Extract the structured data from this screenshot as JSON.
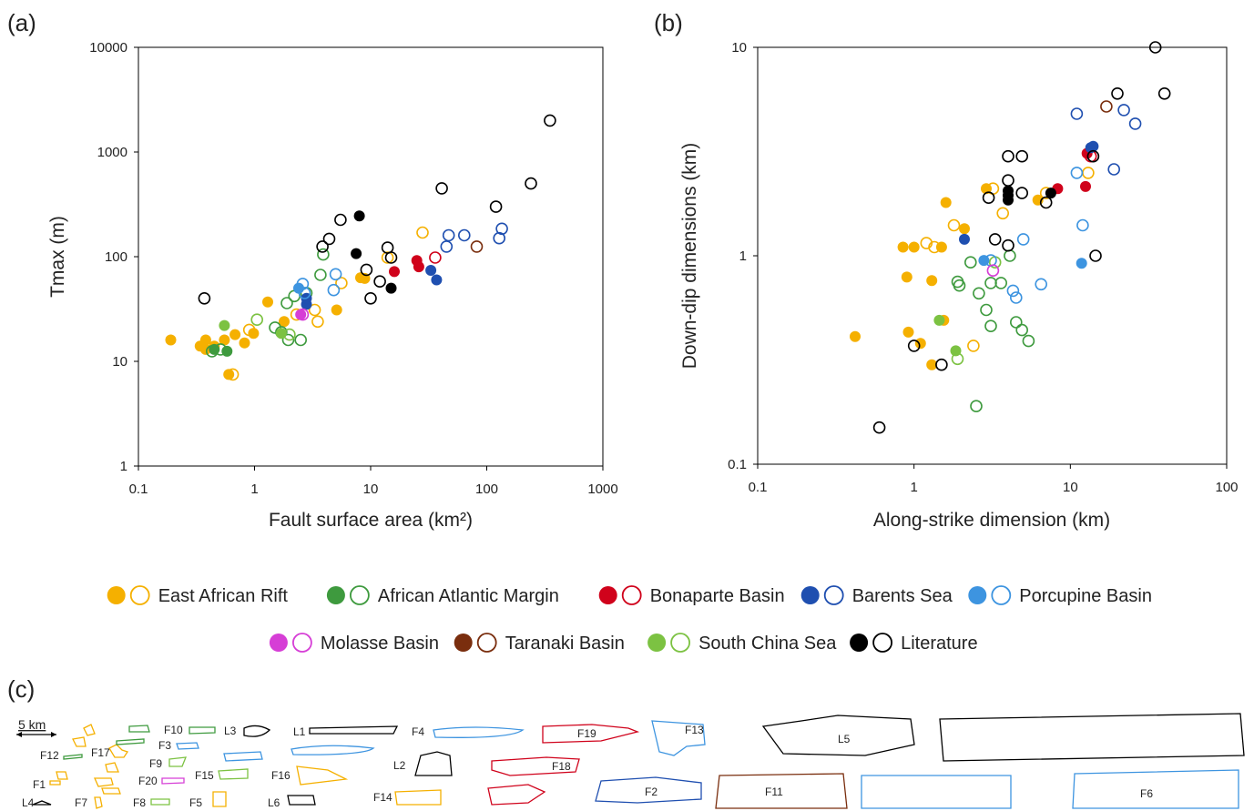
{
  "panels": {
    "a": "(a)",
    "b": "(b)",
    "c": "(c)"
  },
  "scale_bar_label": "5 km",
  "legend": [
    {
      "key": "EAR",
      "label": "East African Rift",
      "color": "#F5B000"
    },
    {
      "key": "AAM",
      "label": "African Atlantic Margin",
      "color": "#3E9A3E"
    },
    {
      "key": "BON",
      "label": "Bonaparte Basin",
      "color": "#D0021B"
    },
    {
      "key": "BAR",
      "label": "Barents Sea",
      "color": "#1F4FB0"
    },
    {
      "key": "POR",
      "label": "Porcupine Basin",
      "color": "#3D94E0"
    },
    {
      "key": "MOL",
      "label": "Molasse Basin",
      "color": "#D63ED6"
    },
    {
      "key": "TAR",
      "label": "Taranaki Basin",
      "color": "#7A2E0E"
    },
    {
      "key": "SCS",
      "label": "South China Sea",
      "color": "#7CC242"
    },
    {
      "key": "LIT",
      "label": "Literature",
      "color": "#000000"
    }
  ],
  "chart_data": [
    {
      "id": "a",
      "type": "scatter",
      "xlabel": "Fault surface area (km²)",
      "ylabel": "Tmax (m)",
      "xscale": "log",
      "yscale": "log",
      "xlim": [
        0.1,
        1000
      ],
      "ylim": [
        1,
        10000
      ],
      "xticks": [
        "0.1",
        "1",
        "10",
        "100",
        "1000"
      ],
      "yticks": [
        "1",
        "10",
        "100",
        "1000",
        "10000"
      ],
      "grid": false,
      "points": [
        [
          "EAR",
          1,
          0.19,
          16
        ],
        [
          "EAR",
          1,
          0.34,
          14
        ],
        [
          "EAR",
          1,
          0.38,
          16
        ],
        [
          "EAR",
          1,
          0.38,
          13
        ],
        [
          "EAR",
          1,
          0.45,
          14
        ],
        [
          "EAR",
          1,
          0.6,
          7.5
        ],
        [
          "EAR",
          1,
          0.55,
          16
        ],
        [
          "EAR",
          1,
          0.68,
          18
        ],
        [
          "EAR",
          1,
          0.82,
          15
        ],
        [
          "EAR",
          1,
          0.98,
          18.5
        ],
        [
          "EAR",
          1,
          1.3,
          37
        ],
        [
          "EAR",
          1,
          1.8,
          24
        ],
        [
          "EAR",
          1,
          5.1,
          31
        ],
        [
          "EAR",
          1,
          8.9,
          62
        ],
        [
          "EAR",
          1,
          8.2,
          63
        ],
        [
          "EAR",
          0,
          0.65,
          7.5
        ],
        [
          "EAR",
          0,
          0.9,
          20
        ],
        [
          "EAR",
          0,
          2.3,
          28
        ],
        [
          "EAR",
          0,
          3.3,
          31
        ],
        [
          "EAR",
          0,
          3.5,
          24
        ],
        [
          "EAR",
          0,
          5.6,
          56
        ],
        [
          "EAR",
          0,
          28,
          170
        ],
        [
          "EAR",
          0,
          14,
          98
        ],
        [
          "AAM",
          1,
          0.45,
          13
        ],
        [
          "AAM",
          1,
          0.58,
          12.5
        ],
        [
          "AAM",
          0,
          0.43,
          12.5
        ],
        [
          "AAM",
          0,
          0.51,
          13
        ],
        [
          "AAM",
          0,
          1.5,
          21
        ],
        [
          "AAM",
          0,
          1.7,
          19
        ],
        [
          "AAM",
          0,
          1.95,
          16
        ],
        [
          "AAM",
          0,
          2.5,
          16
        ],
        [
          "AAM",
          0,
          2.2,
          42
        ],
        [
          "AAM",
          0,
          3.9,
          105
        ],
        [
          "AAM",
          0,
          3.7,
          67
        ],
        [
          "AAM",
          0,
          1.9,
          36
        ],
        [
          "AAM",
          0,
          2.8,
          45
        ],
        [
          "SCS",
          1,
          0.55,
          22
        ],
        [
          "SCS",
          1,
          1.7,
          18.5
        ],
        [
          "SCS",
          0,
          1.05,
          25
        ],
        [
          "SCS",
          0,
          2.0,
          18
        ],
        [
          "BON",
          1,
          25,
          92
        ],
        [
          "BON",
          1,
          26,
          80
        ],
        [
          "BON",
          1,
          16,
          72
        ],
        [
          "BON",
          0,
          36,
          98
        ],
        [
          "BAR",
          1,
          33,
          74
        ],
        [
          "BAR",
          1,
          37,
          60
        ],
        [
          "BAR",
          1,
          2.8,
          35
        ],
        [
          "BAR",
          1,
          2.8,
          40
        ],
        [
          "BAR",
          0,
          45,
          125
        ],
        [
          "BAR",
          0,
          64,
          160
        ],
        [
          "BAR",
          0,
          47,
          160
        ],
        [
          "BAR",
          0,
          128,
          150
        ],
        [
          "BAR",
          0,
          135,
          185
        ],
        [
          "POR",
          1,
          2.4,
          50
        ],
        [
          "POR",
          0,
          2.7,
          45
        ],
        [
          "POR",
          0,
          2.6,
          55
        ],
        [
          "POR",
          0,
          4.8,
          48
        ],
        [
          "POR",
          0,
          5,
          68
        ],
        [
          "MOL",
          1,
          2.5,
          28
        ],
        [
          "MOL",
          0,
          2.6,
          28
        ],
        [
          "TAR",
          0,
          82,
          125
        ],
        [
          "LIT",
          1,
          8,
          245
        ],
        [
          "LIT",
          1,
          7.5,
          107
        ],
        [
          "LIT",
          1,
          15,
          50
        ],
        [
          "LIT",
          0,
          0.37,
          40
        ],
        [
          "LIT",
          0,
          3.85,
          125
        ],
        [
          "LIT",
          0,
          4.4,
          148
        ],
        [
          "LIT",
          0,
          5.5,
          225
        ],
        [
          "LIT",
          0,
          9.2,
          75
        ],
        [
          "LIT",
          0,
          10,
          40
        ],
        [
          "LIT",
          0,
          12,
          58
        ],
        [
          "LIT",
          0,
          14,
          122
        ],
        [
          "LIT",
          0,
          15,
          98
        ],
        [
          "LIT",
          0,
          41,
          450
        ],
        [
          "LIT",
          0,
          120,
          300
        ],
        [
          "LIT",
          0,
          240,
          500
        ],
        [
          "LIT",
          0,
          350,
          2000
        ]
      ]
    },
    {
      "id": "b",
      "type": "scatter",
      "xlabel": "Along-strike dimension (km)",
      "ylabel": "Down-dip dimensions (km)",
      "xscale": "log",
      "yscale": "log",
      "xlim": [
        0.1,
        100
      ],
      "ylim": [
        0.1,
        10
      ],
      "xticks": [
        "0.1",
        "1",
        "10",
        "100"
      ],
      "yticks": [
        "0.1",
        "1",
        "10"
      ],
      "grid": false,
      "points": [
        [
          "EAR",
          1,
          0.42,
          0.41
        ],
        [
          "EAR",
          1,
          0.85,
          1.1
        ],
        [
          "EAR",
          1,
          1.0,
          1.1
        ],
        [
          "EAR",
          1,
          0.9,
          0.79
        ],
        [
          "EAR",
          1,
          0.92,
          0.43
        ],
        [
          "EAR",
          1,
          1.1,
          0.38
        ],
        [
          "EAR",
          1,
          1.3,
          0.3
        ],
        [
          "EAR",
          1,
          1.3,
          0.76
        ],
        [
          "EAR",
          1,
          1.5,
          1.1
        ],
        [
          "EAR",
          1,
          1.6,
          1.8
        ],
        [
          "EAR",
          1,
          2.1,
          1.35
        ],
        [
          "EAR",
          1,
          1.55,
          0.49
        ],
        [
          "EAR",
          1,
          2.9,
          2.1
        ],
        [
          "EAR",
          1,
          6.2,
          1.85
        ],
        [
          "EAR",
          0,
          1.2,
          1.15
        ],
        [
          "EAR",
          0,
          1.35,
          1.1
        ],
        [
          "EAR",
          0,
          1.8,
          1.4
        ],
        [
          "EAR",
          0,
          2.4,
          0.37
        ],
        [
          "EAR",
          0,
          3.2,
          2.1
        ],
        [
          "EAR",
          0,
          3.7,
          1.6
        ],
        [
          "EAR",
          0,
          7.0,
          2.0
        ],
        [
          "EAR",
          0,
          13,
          2.5
        ],
        [
          "AAM",
          0,
          1.9,
          0.75
        ],
        [
          "AAM",
          0,
          1.95,
          0.72
        ],
        [
          "AAM",
          0,
          2.3,
          0.93
        ],
        [
          "AAM",
          0,
          2.6,
          0.66
        ],
        [
          "AAM",
          0,
          2.9,
          0.55
        ],
        [
          "AAM",
          0,
          3.1,
          0.46
        ],
        [
          "AAM",
          0,
          3.1,
          0.74
        ],
        [
          "AAM",
          0,
          3.6,
          0.74
        ],
        [
          "AAM",
          0,
          4.1,
          1.0
        ],
        [
          "AAM",
          0,
          4.5,
          0.48
        ],
        [
          "AAM",
          0,
          4.9,
          0.44
        ],
        [
          "AAM",
          0,
          5.4,
          0.39
        ],
        [
          "AAM",
          0,
          2.5,
          0.19
        ],
        [
          "SCS",
          1,
          1.45,
          0.49
        ],
        [
          "SCS",
          1,
          1.85,
          0.35
        ],
        [
          "SCS",
          0,
          1.9,
          0.32
        ],
        [
          "SCS",
          0,
          3.3,
          0.93
        ],
        [
          "BON",
          1,
          12.5,
          2.15
        ],
        [
          "BON",
          1,
          8.3,
          2.1
        ],
        [
          "BON",
          1,
          12.8,
          3.1
        ],
        [
          "BON",
          0,
          13.5,
          3.0
        ],
        [
          "BAR",
          1,
          2.1,
          1.2
        ],
        [
          "BAR",
          1,
          13.5,
          3.3
        ],
        [
          "BAR",
          1,
          14,
          3.35
        ],
        [
          "BAR",
          0,
          11,
          4.8
        ],
        [
          "BAR",
          0,
          19,
          2.6
        ],
        [
          "BAR",
          0,
          22,
          5.0
        ],
        [
          "BAR",
          0,
          26,
          4.3
        ],
        [
          "POR",
          1,
          2.8,
          0.95
        ],
        [
          "POR",
          1,
          11.8,
          0.92
        ],
        [
          "POR",
          0,
          3.1,
          0.95
        ],
        [
          "POR",
          0,
          4.3,
          0.68
        ],
        [
          "POR",
          0,
          4.5,
          0.63
        ],
        [
          "POR",
          0,
          5.0,
          1.2
        ],
        [
          "POR",
          0,
          6.5,
          0.73
        ],
        [
          "POR",
          0,
          12,
          1.4
        ],
        [
          "POR",
          0,
          11,
          2.5
        ],
        [
          "MOL",
          0,
          3.2,
          0.85
        ],
        [
          "TAR",
          0,
          17,
          5.2
        ],
        [
          "LIT",
          1,
          4.0,
          1.85
        ],
        [
          "LIT",
          1,
          4.0,
          2.05
        ],
        [
          "LIT",
          1,
          4.0,
          1.95
        ],
        [
          "LIT",
          1,
          7.5,
          2.0
        ],
        [
          "LIT",
          0,
          0.6,
          0.15
        ],
        [
          "LIT",
          0,
          1.0,
          0.37
        ],
        [
          "LIT",
          0,
          1.5,
          0.3
        ],
        [
          "LIT",
          0,
          3.0,
          1.9
        ],
        [
          "LIT",
          0,
          3.3,
          1.2
        ],
        [
          "LIT",
          0,
          4.0,
          1.12
        ],
        [
          "LIT",
          0,
          4.0,
          2.3
        ],
        [
          "LIT",
          0,
          4.0,
          3.0
        ],
        [
          "LIT",
          0,
          4.9,
          2.0
        ],
        [
          "LIT",
          0,
          4.9,
          3.0
        ],
        [
          "LIT",
          0,
          7.0,
          1.8
        ],
        [
          "LIT",
          0,
          14.5,
          1.0
        ],
        [
          "LIT",
          0,
          14,
          3.0
        ],
        [
          "LIT",
          0,
          20,
          6.0
        ],
        [
          "LIT",
          0,
          35,
          10
        ],
        [
          "LIT",
          0,
          40,
          6.0
        ]
      ]
    }
  ],
  "fault_shapes": [
    {
      "label": "F12",
      "color": "#3E9A3E"
    },
    {
      "label": "F17",
      "color": "#F5B000"
    },
    {
      "label": "F10",
      "color": "#3E9A3E"
    },
    {
      "label": "F3",
      "color": "#3D94E0"
    },
    {
      "label": "F9",
      "color": "#7CC242"
    },
    {
      "label": "F20",
      "color": "#D63ED6"
    },
    {
      "label": "F15",
      "color": "#7CC242"
    },
    {
      "label": "F1",
      "color": "#F5B000"
    },
    {
      "label": "F7",
      "color": "#F5B000"
    },
    {
      "label": "F8",
      "color": "#7CC242"
    },
    {
      "label": "F5",
      "color": "#F5B000"
    },
    {
      "label": "L4",
      "color": "#000000"
    },
    {
      "label": "L3",
      "color": "#000000"
    },
    {
      "label": "L6",
      "color": "#000000"
    },
    {
      "label": "L1",
      "color": "#000000"
    },
    {
      "label": "L2",
      "color": "#000000"
    },
    {
      "label": "F16",
      "color": "#F5B000"
    },
    {
      "label": "F14",
      "color": "#F5B000"
    },
    {
      "label": "F4",
      "color": "#3D94E0"
    },
    {
      "label": "F19",
      "color": "#D0021B"
    },
    {
      "label": "F18",
      "color": "#D0021B"
    },
    {
      "label": "F13",
      "color": "#3D94E0"
    },
    {
      "label": "F2",
      "color": "#1F4FB0"
    },
    {
      "label": "L5",
      "color": "#000000"
    },
    {
      "label": "F11",
      "color": "#7A2E0E"
    },
    {
      "label": "F6",
      "color": "#3D94E0"
    }
  ]
}
